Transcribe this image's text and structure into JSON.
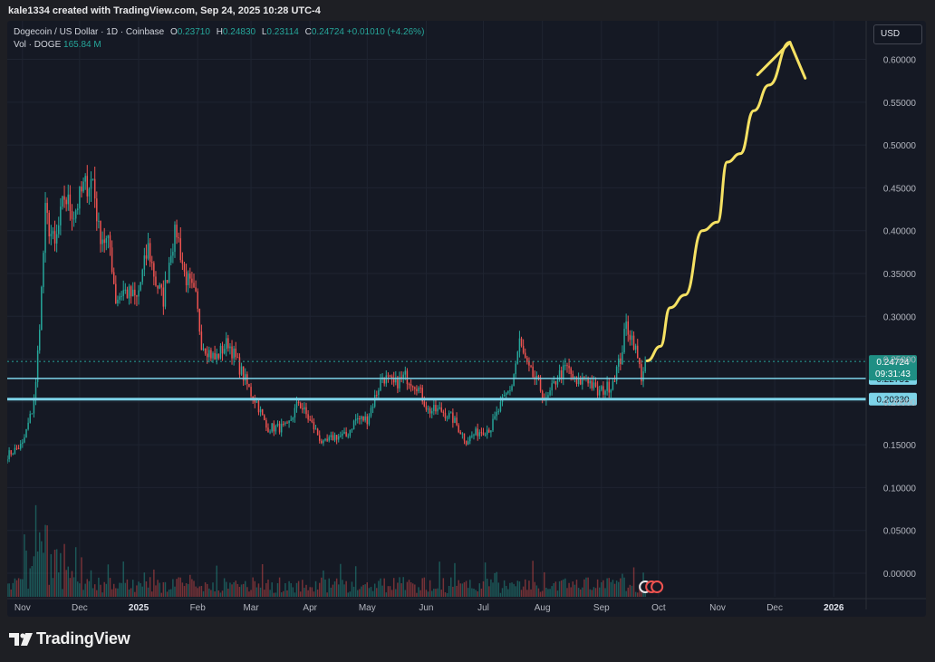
{
  "caption": "kale1334 created with TradingView.com, Sep 24, 2025 10:28 UTC-4",
  "legend": {
    "symbol": "Dogecoin / US Dollar · 1D · Coinbase",
    "open_label": "O",
    "open": "0.23710",
    "high_label": "H",
    "high": "0.24830",
    "low_label": "L",
    "low": "0.23114",
    "close_label": "C",
    "close": "0.24724",
    "change": "+0.01010 (+4.26%)",
    "vol_label": "Vol · DOGE",
    "vol_value": "165.84 M"
  },
  "currency": "USD",
  "brand": "TradingView",
  "colors": {
    "background": "#151924",
    "up": "#26a69a",
    "down": "#ef5350",
    "support_line": "#7dd3e8",
    "annotation": "#f5e163",
    "axis_text": "#b2b5be"
  },
  "chart_data": {
    "type": "candlestick",
    "title": "Dogecoin / US Dollar · 1D · Coinbase",
    "y_ticks": [
      "0.60000",
      "0.55000",
      "0.50000",
      "0.45000",
      "0.40000",
      "0.35000",
      "0.30000",
      "0.25000",
      "0.20000",
      "0.15000",
      "0.10000",
      "0.05000",
      "0.00000"
    ],
    "y_tick_values": [
      0.6,
      0.55,
      0.5,
      0.45,
      0.4,
      0.35,
      0.3,
      0.25,
      0.2,
      0.15,
      0.1,
      0.05,
      0.0
    ],
    "ylim": [
      -0.0275,
      0.645
    ],
    "x_ticks": [
      "Nov",
      "Dec",
      "2025",
      "Feb",
      "Mar",
      "Apr",
      "May",
      "Jun",
      "Jul",
      "Aug",
      "Sep",
      "Oct",
      "Nov",
      "Dec",
      "2026"
    ],
    "x_tick_dates": [
      "2024-11-01",
      "2024-12-01",
      "2025-01-01",
      "2025-02-01",
      "2025-03-01",
      "2025-04-01",
      "2025-05-01",
      "2025-06-01",
      "2025-07-01",
      "2025-08-01",
      "2025-09-01",
      "2025-10-01",
      "2025-11-01",
      "2025-12-01",
      "2026-01-01"
    ],
    "x_bold": [
      false,
      false,
      true,
      false,
      false,
      false,
      false,
      false,
      false,
      false,
      false,
      false,
      false,
      false,
      true
    ],
    "xlim": [
      "2024-10-24",
      "2026-01-18"
    ],
    "price_path": [
      {
        "date": "2024-10-24",
        "price": 0.138
      },
      {
        "date": "2024-11-01",
        "price": 0.15
      },
      {
        "date": "2024-11-06",
        "price": 0.19
      },
      {
        "date": "2024-11-08",
        "price": 0.22
      },
      {
        "date": "2024-11-11",
        "price": 0.33
      },
      {
        "date": "2024-11-13",
        "price": 0.42
      },
      {
        "date": "2024-11-18",
        "price": 0.38
      },
      {
        "date": "2024-11-23",
        "price": 0.44
      },
      {
        "date": "2024-11-28",
        "price": 0.42
      },
      {
        "date": "2024-12-03",
        "price": 0.45
      },
      {
        "date": "2024-12-08",
        "price": 0.46
      },
      {
        "date": "2024-12-11",
        "price": 0.4
      },
      {
        "date": "2024-12-17",
        "price": 0.38
      },
      {
        "date": "2024-12-20",
        "price": 0.32
      },
      {
        "date": "2024-12-24",
        "price": 0.33
      },
      {
        "date": "2024-12-31",
        "price": 0.32
      },
      {
        "date": "2025-01-06",
        "price": 0.38
      },
      {
        "date": "2025-01-10",
        "price": 0.34
      },
      {
        "date": "2025-01-14",
        "price": 0.32
      },
      {
        "date": "2025-01-18",
        "price": 0.38
      },
      {
        "date": "2025-01-21",
        "price": 0.4
      },
      {
        "date": "2025-01-25",
        "price": 0.35
      },
      {
        "date": "2025-01-31",
        "price": 0.32
      },
      {
        "date": "2025-02-03",
        "price": 0.27
      },
      {
        "date": "2025-02-10",
        "price": 0.25
      },
      {
        "date": "2025-02-17",
        "price": 0.27
      },
      {
        "date": "2025-02-23",
        "price": 0.24
      },
      {
        "date": "2025-03-01",
        "price": 0.21
      },
      {
        "date": "2025-03-04",
        "price": 0.2
      },
      {
        "date": "2025-03-09",
        "price": 0.17
      },
      {
        "date": "2025-03-14",
        "price": 0.17
      },
      {
        "date": "2025-03-20",
        "price": 0.17
      },
      {
        "date": "2025-03-26",
        "price": 0.2
      },
      {
        "date": "2025-04-03",
        "price": 0.17
      },
      {
        "date": "2025-04-08",
        "price": 0.15
      },
      {
        "date": "2025-04-14",
        "price": 0.16
      },
      {
        "date": "2025-04-20",
        "price": 0.16
      },
      {
        "date": "2025-04-25",
        "price": 0.18
      },
      {
        "date": "2025-05-01",
        "price": 0.18
      },
      {
        "date": "2025-05-09",
        "price": 0.23
      },
      {
        "date": "2025-05-15",
        "price": 0.22
      },
      {
        "date": "2025-05-21",
        "price": 0.23
      },
      {
        "date": "2025-05-27",
        "price": 0.22
      },
      {
        "date": "2025-06-02",
        "price": 0.19
      },
      {
        "date": "2025-06-09",
        "price": 0.19
      },
      {
        "date": "2025-06-15",
        "price": 0.18
      },
      {
        "date": "2025-06-22",
        "price": 0.155
      },
      {
        "date": "2025-06-28",
        "price": 0.165
      },
      {
        "date": "2025-07-05",
        "price": 0.17
      },
      {
        "date": "2025-07-11",
        "price": 0.2
      },
      {
        "date": "2025-07-16",
        "price": 0.22
      },
      {
        "date": "2025-07-20",
        "price": 0.27
      },
      {
        "date": "2025-07-24",
        "price": 0.24
      },
      {
        "date": "2025-07-30",
        "price": 0.22
      },
      {
        "date": "2025-08-03",
        "price": 0.2
      },
      {
        "date": "2025-08-09",
        "price": 0.23
      },
      {
        "date": "2025-08-14",
        "price": 0.24
      },
      {
        "date": "2025-08-19",
        "price": 0.22
      },
      {
        "date": "2025-08-24",
        "price": 0.23
      },
      {
        "date": "2025-08-30",
        "price": 0.21
      },
      {
        "date": "2025-09-06",
        "price": 0.22
      },
      {
        "date": "2025-09-11",
        "price": 0.25
      },
      {
        "date": "2025-09-14",
        "price": 0.29
      },
      {
        "date": "2025-09-18",
        "price": 0.27
      },
      {
        "date": "2025-09-22",
        "price": 0.23
      },
      {
        "date": "2025-09-24",
        "price": 0.247
      }
    ],
    "support_levels": [
      {
        "label": "0.22751",
        "value": 0.22751
      },
      {
        "label": "0.20330",
        "value": 0.2033
      }
    ],
    "current_price": {
      "label": "0.24724",
      "value": 0.24724,
      "countdown": "09:31:43"
    },
    "annotation": {
      "kind": "hand-drawn upward arrow",
      "path": [
        {
          "date": "2025-09-25",
          "price": 0.248
        },
        {
          "date": "2025-10-02",
          "price": 0.265
        },
        {
          "date": "2025-10-07",
          "price": 0.31
        },
        {
          "date": "2025-10-15",
          "price": 0.325
        },
        {
          "date": "2025-10-24",
          "price": 0.4
        },
        {
          "date": "2025-11-01",
          "price": 0.41
        },
        {
          "date": "2025-11-06",
          "price": 0.48
        },
        {
          "date": "2025-11-13",
          "price": 0.49
        },
        {
          "date": "2025-11-20",
          "price": 0.54
        },
        {
          "date": "2025-11-28",
          "price": 0.57
        },
        {
          "date": "2025-12-09",
          "price": 0.62
        }
      ],
      "head_left": {
        "date": "2025-11-22",
        "price": 0.582
      },
      "head_right": {
        "date": "2025-12-17",
        "price": 0.578
      }
    }
  }
}
